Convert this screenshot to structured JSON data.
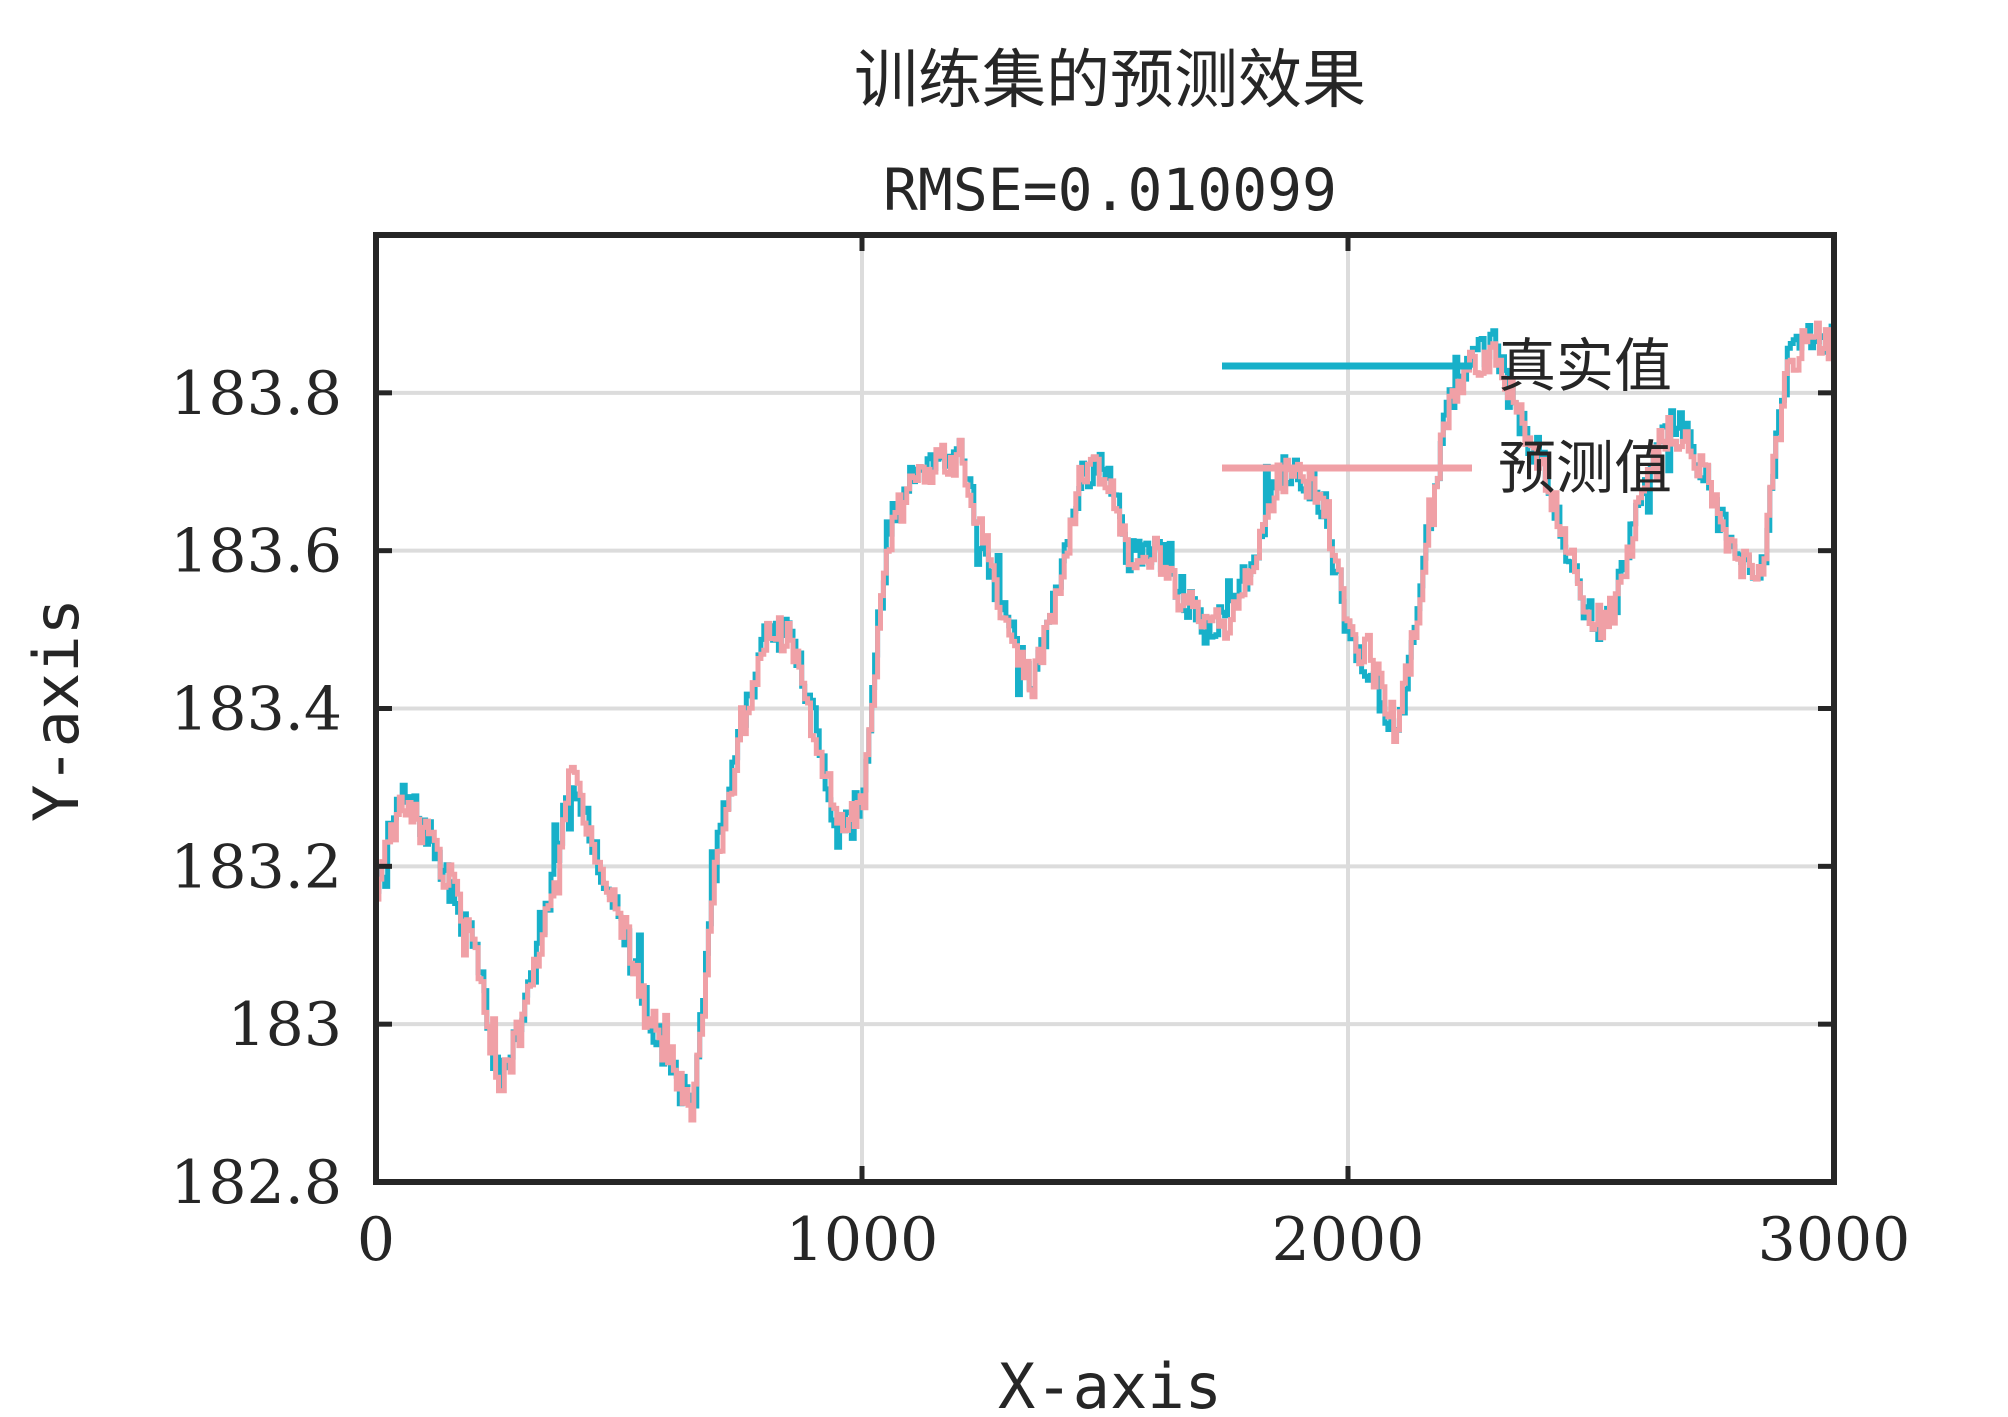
{
  "chart_data": {
    "type": "line",
    "title": "训练集的预测效果",
    "subtitle": "RMSE=0.010099",
    "xlabel": "X-axis",
    "ylabel": "Y-axis",
    "xlim": [
      0,
      3000
    ],
    "ylim": [
      182.8,
      184.0
    ],
    "xticks": [
      0,
      1000,
      2000,
      3000
    ],
    "xtick_labels": [
      "0",
      "1000",
      "2000",
      "3000"
    ],
    "yticks": [
      182.8,
      183.0,
      183.2,
      183.4,
      183.6,
      183.8
    ],
    "ytick_labels": [
      "182.8",
      "183",
      "183.2",
      "183.4",
      "183.6",
      "183.8"
    ],
    "grid": true,
    "legend_position": "top-right",
    "colors": {
      "真实值": "#17b0c9",
      "预测值": "#f0a0a6",
      "axes": "#262626",
      "grid": "#dcdcdc"
    },
    "x": [
      0,
      50,
      100,
      150,
      200,
      250,
      300,
      350,
      400,
      450,
      500,
      550,
      600,
      650,
      700,
      750,
      800,
      850,
      900,
      950,
      1000,
      1050,
      1100,
      1150,
      1200,
      1250,
      1300,
      1350,
      1400,
      1450,
      1500,
      1550,
      1600,
      1650,
      1700,
      1750,
      1800,
      1850,
      1900,
      1950,
      2000,
      2050,
      2100,
      2150,
      2200,
      2250,
      2300,
      2350,
      2400,
      2450,
      2500,
      2550,
      2600,
      2650,
      2700,
      2750,
      2800,
      2850,
      2900,
      2950,
      3000
    ],
    "series": [
      {
        "name": "真实值",
        "values": [
          183.18,
          183.29,
          183.25,
          183.17,
          183.1,
          182.93,
          183.01,
          183.14,
          183.32,
          183.22,
          183.13,
          183.03,
          182.95,
          182.89,
          183.22,
          183.38,
          183.49,
          183.5,
          183.38,
          183.24,
          183.29,
          183.62,
          183.7,
          183.72,
          183.73,
          183.6,
          183.5,
          183.42,
          183.55,
          183.7,
          183.71,
          183.59,
          183.61,
          183.55,
          183.5,
          183.52,
          183.58,
          183.7,
          183.71,
          183.65,
          183.49,
          183.44,
          183.36,
          183.57,
          183.78,
          183.84,
          183.86,
          183.76,
          183.72,
          183.6,
          183.49,
          183.54,
          183.68,
          183.76,
          183.75,
          183.66,
          183.59,
          183.57,
          183.84,
          183.88,
          183.86
        ]
      },
      {
        "name": "预测值",
        "values": [
          183.17,
          183.28,
          183.24,
          183.18,
          183.11,
          182.92,
          183.0,
          183.13,
          183.33,
          183.21,
          183.14,
          183.02,
          182.96,
          182.88,
          183.21,
          183.37,
          183.5,
          183.49,
          183.37,
          183.25,
          183.28,
          183.61,
          183.69,
          183.71,
          183.72,
          183.61,
          183.49,
          183.43,
          183.54,
          183.7,
          183.7,
          183.6,
          183.6,
          183.54,
          183.51,
          183.51,
          183.57,
          183.69,
          183.7,
          183.66,
          183.5,
          183.45,
          183.37,
          183.56,
          183.77,
          183.83,
          183.85,
          183.77,
          183.71,
          183.61,
          183.5,
          183.53,
          183.67,
          183.75,
          183.74,
          183.67,
          183.58,
          183.58,
          183.83,
          183.87,
          183.86
        ]
      }
    ]
  }
}
